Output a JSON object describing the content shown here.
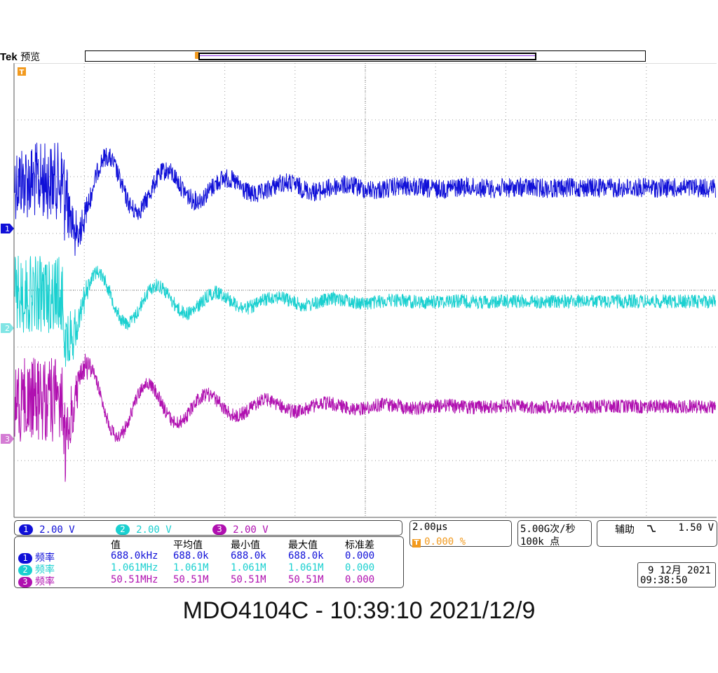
{
  "header": {
    "brand": "Tek",
    "mode": "预览",
    "trigger_marker": "T"
  },
  "colors": {
    "ch1": "#1010d8",
    "ch2": "#1ad0d0",
    "ch3": "#b010b0",
    "trigger": "#f29a1e",
    "grid": "#9a9a9a"
  },
  "channels": [
    {
      "id": "1",
      "scale": "2.00 V",
      "color": "#1010d8"
    },
    {
      "id": "2",
      "scale": "2.00 V",
      "color": "#1ad0d0"
    },
    {
      "id": "3",
      "scale": "2.00 V",
      "color": "#b010b0"
    }
  ],
  "timebase": {
    "scale": "2.00µs",
    "trigger_label": "T",
    "trigger_position": "0.000 %",
    "sample_rate": "5.00G次/秒",
    "record_length": "100k 点"
  },
  "trigger": {
    "source": "辅助",
    "slope_icon": "falling-edge-icon",
    "level": "1.50 V"
  },
  "measurements": {
    "headers": [
      "值",
      "平均值",
      "最小值",
      "最大值",
      "标准差"
    ],
    "rows": [
      {
        "channel": "1",
        "label": "频率",
        "value": "688.0kHz",
        "mean": "688.0k",
        "min": "688.0k",
        "max": "688.0k",
        "std": "0.000"
      },
      {
        "channel": "2",
        "label": "频率",
        "value": "1.061MHz",
        "mean": "1.061M",
        "min": "1.061M",
        "max": "1.061M",
        "std": "0.000"
      },
      {
        "channel": "3",
        "label": "频率",
        "value": "50.51MHz",
        "mean": "50.51M",
        "min": "50.51M",
        "max": "50.51M",
        "std": "0.000"
      }
    ]
  },
  "datetime": {
    "date": "9 12月 2021",
    "time": "09:38:50"
  },
  "footer": {
    "title": "MDO4104C - 10:39:10   2021/12/9"
  }
}
